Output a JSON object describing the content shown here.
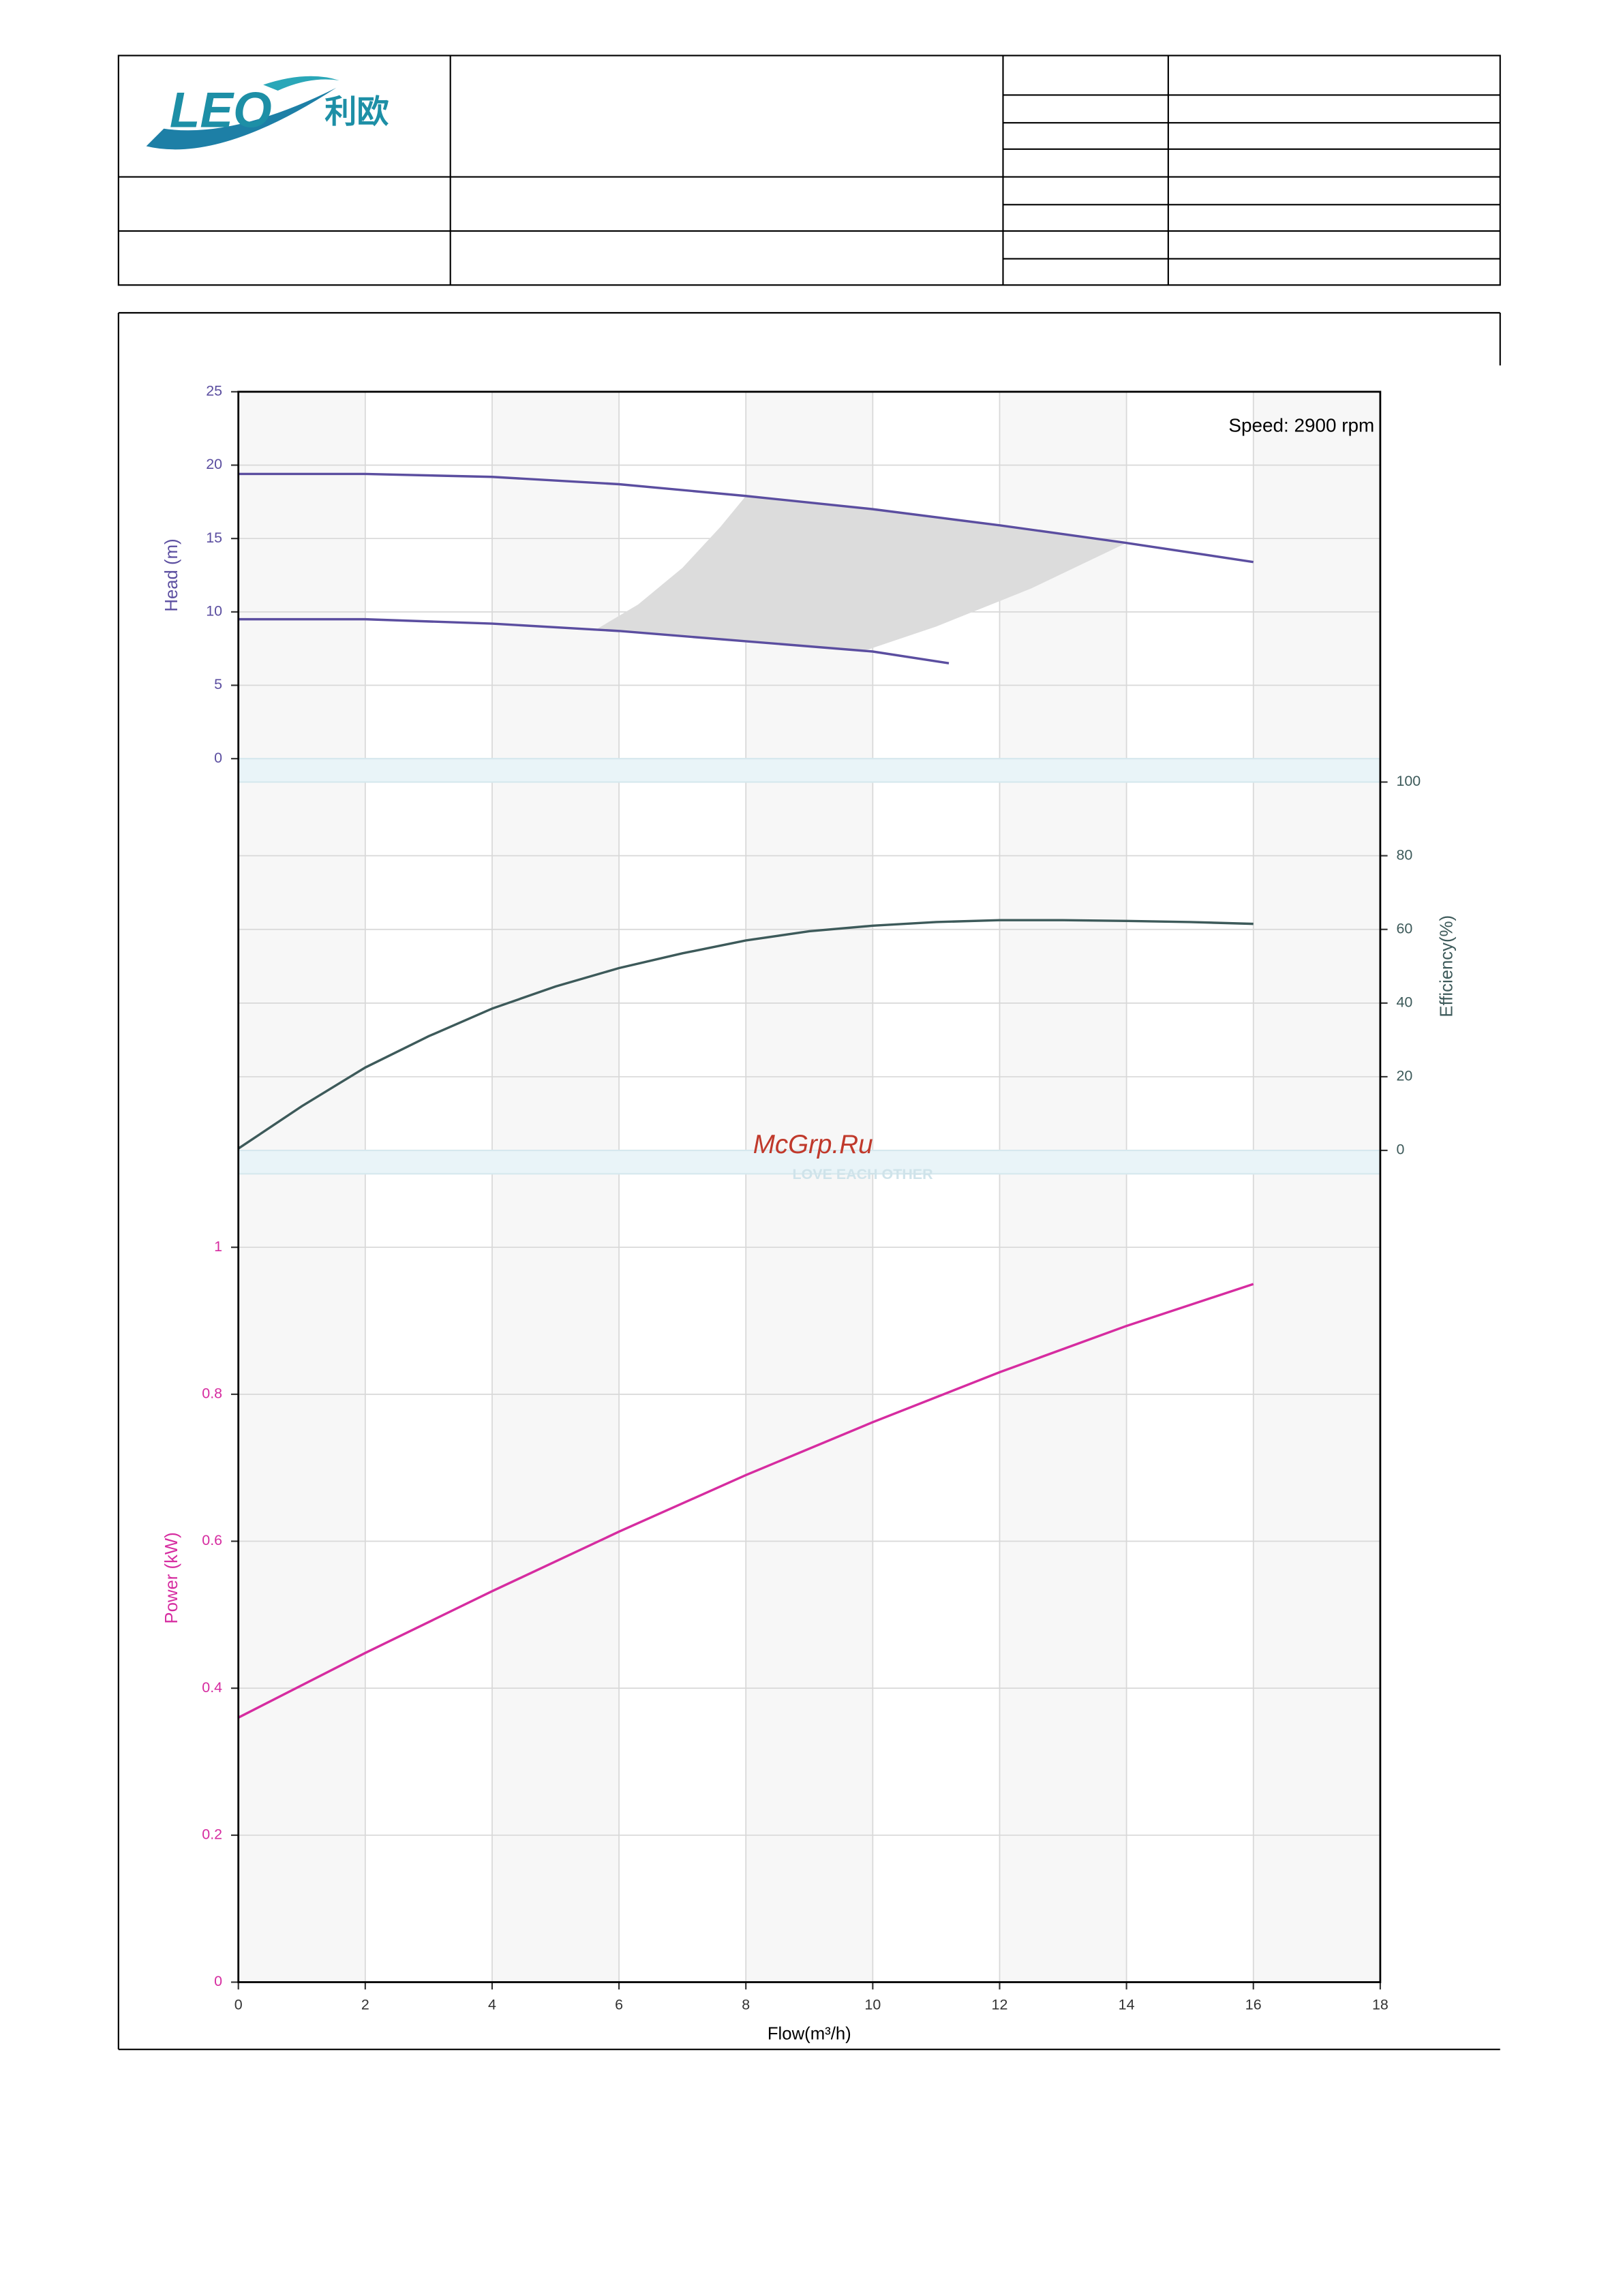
{
  "header": {
    "logo": "LEO",
    "logo_cn": "利欧"
  },
  "watermark": "McGrp.Ru",
  "watermark_sub": "LOVE EACH OTHER",
  "chart_data": [
    {
      "type": "line",
      "annotation": "Speed: 2900 rpm",
      "ylabel": "Head (m)",
      "label_color": "#5b4ea0",
      "xlim": [
        0,
        18
      ],
      "xticks": [
        0,
        2,
        4,
        6,
        8,
        10,
        12,
        14,
        16,
        18
      ],
      "ylim": [
        0,
        25
      ],
      "yticks": [
        0,
        5,
        10,
        15,
        20,
        25
      ],
      "grid": true,
      "operating_region": {
        "color": "#dcdcdc",
        "x": [
          5.6,
          6.3,
          7.0,
          7.6,
          8,
          10,
          12,
          14,
          12.5,
          11,
          9.9,
          8,
          6,
          5.6
        ],
        "y": [
          8.7,
          10.5,
          13.0,
          15.8,
          17.9,
          17.0,
          15.9,
          14.7,
          11.6,
          9.0,
          7.4,
          8.0,
          8.7,
          8.75
        ]
      },
      "series": [
        {
          "color": "#5b4ea0",
          "x": [
            0,
            2,
            4,
            6,
            8,
            10,
            12,
            14,
            16
          ],
          "values": [
            19.4,
            19.4,
            19.2,
            18.7,
            17.9,
            17.0,
            15.9,
            14.7,
            13.4
          ]
        },
        {
          "color": "#5b4ea0",
          "x": [
            0,
            2,
            4,
            6,
            8,
            10,
            11.2
          ],
          "values": [
            9.5,
            9.5,
            9.2,
            8.7,
            8.0,
            7.3,
            6.5
          ]
        }
      ]
    },
    {
      "type": "line",
      "ylabel": "Efficiency(%)",
      "label_color": "#3d5a5a",
      "axis_side": "right",
      "xlim": [
        0,
        18
      ],
      "xticks": [
        0,
        2,
        4,
        6,
        8,
        10,
        12,
        14,
        16,
        18
      ],
      "ylim": [
        0,
        100
      ],
      "yticks": [
        0,
        20,
        40,
        60,
        80,
        100
      ],
      "grid": true,
      "series": [
        {
          "color": "#3d5a5a",
          "x": [
            0,
            1,
            2,
            3,
            4,
            5,
            6,
            7,
            8,
            9,
            10,
            11,
            12,
            13,
            14,
            15,
            16
          ],
          "values": [
            0.5,
            12,
            22.5,
            31,
            38.5,
            44.5,
            49.5,
            53.5,
            57,
            59.5,
            61,
            62,
            62.5,
            62.5,
            62.3,
            62,
            61.5
          ]
        }
      ]
    },
    {
      "type": "line",
      "ylabel": "Power (kW)",
      "xlabel": "Flow(m³/h)",
      "label_color": "#d62ca0",
      "xlim": [
        0,
        18
      ],
      "xticks": [
        0,
        2,
        4,
        6,
        8,
        10,
        12,
        14,
        16,
        18
      ],
      "ylim": [
        0,
        1.1
      ],
      "yticks": [
        0,
        0.2,
        0.4,
        0.6,
        0.8,
        1
      ],
      "grid": true,
      "series": [
        {
          "color": "#d62ca0",
          "x": [
            0,
            2,
            4,
            6,
            8,
            10,
            12,
            14,
            16
          ],
          "values": [
            0.36,
            0.448,
            0.532,
            0.613,
            0.69,
            0.762,
            0.83,
            0.893,
            0.95
          ]
        }
      ]
    }
  ]
}
